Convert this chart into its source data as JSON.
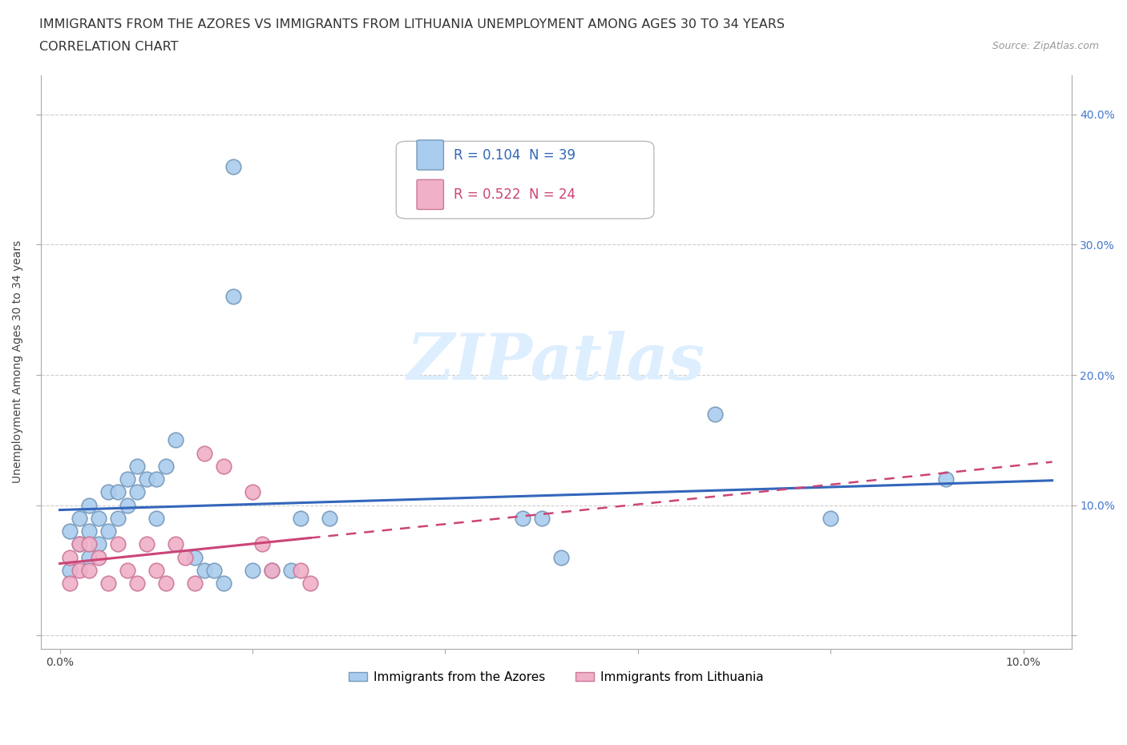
{
  "title_line1": "IMMIGRANTS FROM THE AZORES VS IMMIGRANTS FROM LITHUANIA UNEMPLOYMENT AMONG AGES 30 TO 34 YEARS",
  "title_line2": "CORRELATION CHART",
  "source_text": "Source: ZipAtlas.com",
  "ylabel": "Unemployment Among Ages 30 to 34 years",
  "xlim_min": -0.002,
  "xlim_max": 0.105,
  "ylim_min": -0.01,
  "ylim_max": 0.43,
  "grid_color": "#cccccc",
  "background_color": "#ffffff",
  "azores_color": "#aaccee",
  "azores_edge": "#7799bb",
  "lithuania_color": "#f0b0c8",
  "lithuania_edge": "#cc7799",
  "line_azores_color": "#3366bb",
  "line_lithuania_color": "#cc4477",
  "watermark_color": "#ddeeff",
  "legend_r1": "R = 0.104",
  "legend_n1": "N = 39",
  "legend_r2": "R = 0.522",
  "legend_n2": "N = 24",
  "azores_x": [
    0.001,
    0.001,
    0.002,
    0.002,
    0.003,
    0.003,
    0.003,
    0.004,
    0.004,
    0.005,
    0.005,
    0.006,
    0.006,
    0.007,
    0.007,
    0.008,
    0.008,
    0.009,
    0.01,
    0.01,
    0.011,
    0.012,
    0.014,
    0.015,
    0.016,
    0.017,
    0.018,
    0.018,
    0.02,
    0.022,
    0.024,
    0.025,
    0.028,
    0.048,
    0.05,
    0.052,
    0.068,
    0.08,
    0.092
  ],
  "azores_y": [
    0.08,
    0.05,
    0.07,
    0.09,
    0.06,
    0.08,
    0.1,
    0.07,
    0.09,
    0.08,
    0.11,
    0.09,
    0.11,
    0.1,
    0.12,
    0.11,
    0.13,
    0.12,
    0.09,
    0.12,
    0.13,
    0.15,
    0.06,
    0.05,
    0.05,
    0.04,
    0.36,
    0.26,
    0.05,
    0.05,
    0.05,
    0.09,
    0.09,
    0.09,
    0.09,
    0.06,
    0.17,
    0.09,
    0.12
  ],
  "lithuania_x": [
    0.001,
    0.001,
    0.002,
    0.002,
    0.003,
    0.003,
    0.004,
    0.005,
    0.006,
    0.007,
    0.008,
    0.009,
    0.01,
    0.011,
    0.012,
    0.013,
    0.014,
    0.015,
    0.017,
    0.02,
    0.021,
    0.022,
    0.025,
    0.026
  ],
  "lithuania_y": [
    0.04,
    0.06,
    0.05,
    0.07,
    0.05,
    0.07,
    0.06,
    0.04,
    0.07,
    0.05,
    0.04,
    0.07,
    0.05,
    0.04,
    0.07,
    0.06,
    0.04,
    0.14,
    0.13,
    0.11,
    0.07,
    0.05,
    0.05,
    0.04
  ],
  "title_fontsize": 11.5,
  "subtitle_fontsize": 11.5,
  "axis_label_fontsize": 10,
  "tick_fontsize": 10,
  "legend_fontsize": 12,
  "source_fontsize": 9
}
